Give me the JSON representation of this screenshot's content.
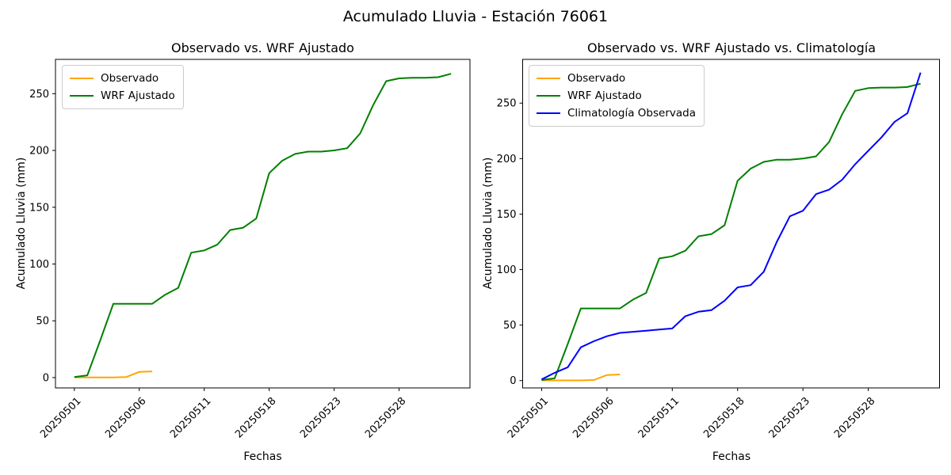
{
  "suptitle": "Acumulado Lluvia - Estación 76061",
  "chart_data": [
    {
      "type": "line",
      "title": "Observado vs. WRF Ajustado",
      "xlabel": "Fechas",
      "ylabel": "Acumulado Lluvia (mm)",
      "grid": false,
      "legend_position": "upper-left",
      "xlim": [
        -1.45,
        30.45
      ],
      "ylim": [
        -9.1,
        280.2
      ],
      "yticks": [
        0,
        50,
        100,
        150,
        200,
        250
      ],
      "xticks": [
        {
          "index": 0,
          "label": "20250501"
        },
        {
          "index": 5,
          "label": "20250506"
        },
        {
          "index": 10,
          "label": "20250511"
        },
        {
          "index": 15,
          "label": "20250518"
        },
        {
          "index": 20,
          "label": "20250523"
        },
        {
          "index": 25,
          "label": "20250528"
        }
      ],
      "series": [
        {
          "name": "Observado",
          "color": "#FFA500",
          "values": [
            0.2,
            0.2,
            0.2,
            0.2,
            0.5,
            5,
            5.5
          ]
        },
        {
          "name": "WRF Ajustado",
          "color": "#008000",
          "values": [
            0.5,
            2,
            33,
            65,
            65,
            65,
            65,
            73,
            79,
            110,
            112,
            117,
            130,
            132,
            140,
            180,
            191,
            197,
            199,
            199,
            200,
            202,
            215,
            240,
            261,
            263.5,
            264,
            264,
            264.5,
            267.5
          ]
        }
      ]
    },
    {
      "type": "line",
      "title": "Observado vs. WRF Ajustado vs. Climatología",
      "xlabel": "Fechas",
      "ylabel": "Acumulado Lluvia (mm)",
      "grid": false,
      "legend_position": "upper-left",
      "xlim": [
        -1.45,
        30.45
      ],
      "ylim": [
        -6.6,
        289.4
      ],
      "yticks": [
        0,
        50,
        100,
        150,
        200,
        250
      ],
      "xticks": [
        {
          "index": 0,
          "label": "20250501"
        },
        {
          "index": 5,
          "label": "20250506"
        },
        {
          "index": 10,
          "label": "20250511"
        },
        {
          "index": 15,
          "label": "20250518"
        },
        {
          "index": 20,
          "label": "20250523"
        },
        {
          "index": 25,
          "label": "20250528"
        }
      ],
      "series": [
        {
          "name": "Observado",
          "color": "#FFA500",
          "values": [
            0.2,
            0.2,
            0.2,
            0.2,
            0.5,
            5,
            5.5
          ]
        },
        {
          "name": "WRF Ajustado",
          "color": "#008000",
          "values": [
            0.5,
            2,
            33,
            65,
            65,
            65,
            65,
            73,
            79,
            110,
            112,
            117,
            130,
            132,
            140,
            180,
            191,
            197,
            199,
            199,
            200,
            202,
            215,
            240,
            261,
            263.5,
            264,
            264,
            264.5,
            267.5
          ]
        },
        {
          "name": "Climatología Observada",
          "color": "#0000FF",
          "values": [
            1,
            7,
            12,
            30,
            35.5,
            40,
            43,
            44,
            45,
            46,
            47,
            58,
            62,
            63.5,
            72,
            84,
            86,
            98,
            125,
            148,
            153,
            168,
            172,
            181,
            195,
            207,
            219,
            233,
            241,
            277.5
          ]
        }
      ]
    }
  ]
}
